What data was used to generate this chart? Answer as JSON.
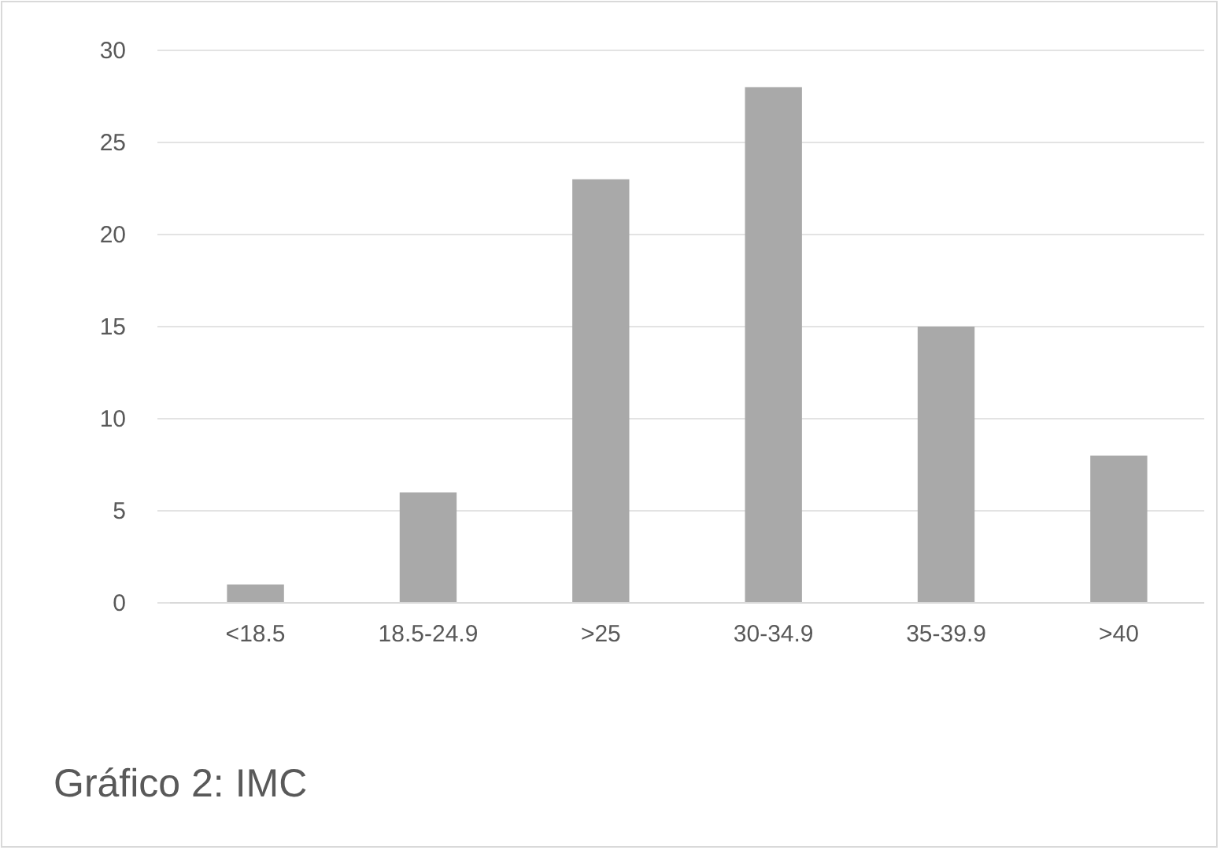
{
  "chart_data": {
    "type": "bar",
    "title": "Gráfico 2: IMC",
    "categories": [
      "<18.5",
      "18.5-24.9",
      ">25",
      "30-34.9",
      "35-39.9",
      ">40"
    ],
    "values": [
      1,
      6,
      23,
      28,
      15,
      8
    ],
    "color": "#a9a9a9",
    "ylim": [
      0,
      30
    ],
    "yticks": [
      0,
      5,
      10,
      15,
      20,
      25,
      30
    ],
    "grid": "y"
  }
}
